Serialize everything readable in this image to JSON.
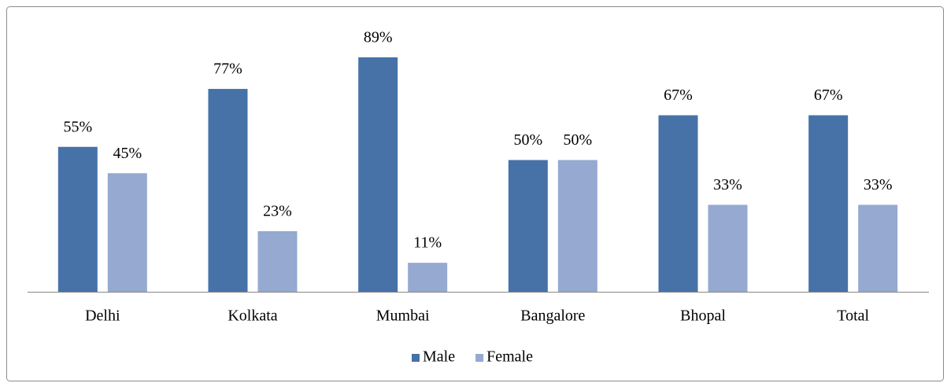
{
  "chart_data": {
    "type": "bar",
    "categories": [
      "Delhi",
      "Kolkata",
      "Mumbai",
      "Bangalore",
      "Bhopal",
      "Total"
    ],
    "series": [
      {
        "name": "Male",
        "color": "#4672a8",
        "values": [
          55,
          77,
          89,
          50,
          67,
          67
        ],
        "value_labels": [
          "55%",
          "77%",
          "89%",
          "50%",
          "67%",
          "67%"
        ]
      },
      {
        "name": "Female",
        "color": "#95a9d1",
        "values": [
          45,
          23,
          11,
          50,
          33,
          33
        ],
        "value_labels": [
          "45%",
          "23%",
          "11%",
          "50%",
          "33%",
          "33%"
        ]
      }
    ],
    "legend": "bottom"
  }
}
